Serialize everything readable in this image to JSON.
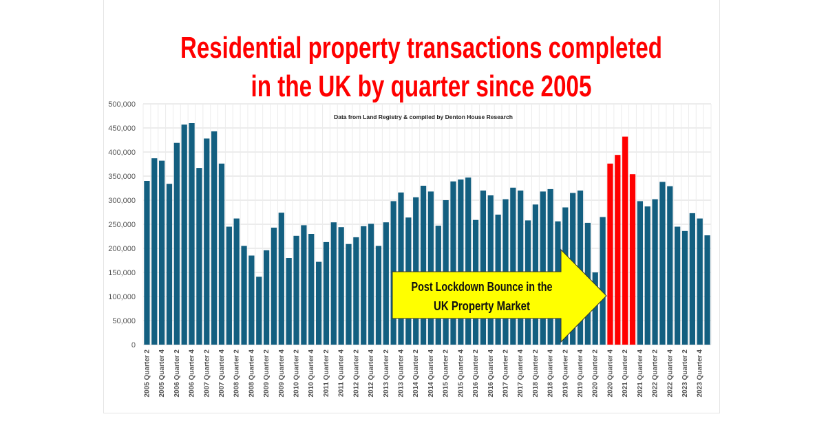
{
  "chart_data": {
    "type": "bar",
    "title_line1": "Residential property transactions completed",
    "title_line2": "in the UK by quarter since 2005",
    "subtitle": "Data from Land Registry & compiled by Denton House Research",
    "xlabel": "",
    "ylabel": "",
    "ylim": [
      0,
      500000
    ],
    "yticks": [
      "0",
      "50,000",
      "100,000",
      "150,000",
      "200,000",
      "250,000",
      "300,000",
      "350,000",
      "400,000",
      "450,000",
      "500,000"
    ],
    "first_quarter": {
      "year": 2005,
      "quarter": 2
    },
    "tick_label_format": "Quarter",
    "values": [
      340000,
      387000,
      382000,
      334000,
      419000,
      457000,
      460000,
      367000,
      428000,
      443000,
      376000,
      245000,
      262000,
      205000,
      185000,
      141000,
      196000,
      243000,
      274000,
      180000,
      226000,
      248000,
      230000,
      172000,
      213000,
      254000,
      244000,
      209000,
      223000,
      246000,
      251000,
      205000,
      254000,
      298000,
      316000,
      264000,
      306000,
      330000,
      318000,
      247000,
      300000,
      339000,
      343000,
      347000,
      259000,
      320000,
      310000,
      270000,
      302000,
      326000,
      320000,
      258000,
      291000,
      318000,
      323000,
      256000,
      285000,
      315000,
      320000,
      253000,
      150000,
      265000,
      376000,
      394000,
      432000,
      354000,
      298000,
      287000,
      302000,
      338000,
      329000,
      245000,
      236000,
      273000,
      262000,
      227000
    ],
    "highlighted_indices": [
      62,
      63,
      64,
      65
    ],
    "bar_color": "#135f80",
    "highlight_color": "#ff0000",
    "grid": true,
    "annotation": {
      "line1": "Post Lockdown Bounce in the",
      "line2": "UK Property Market",
      "color": "#ffff00"
    }
  }
}
